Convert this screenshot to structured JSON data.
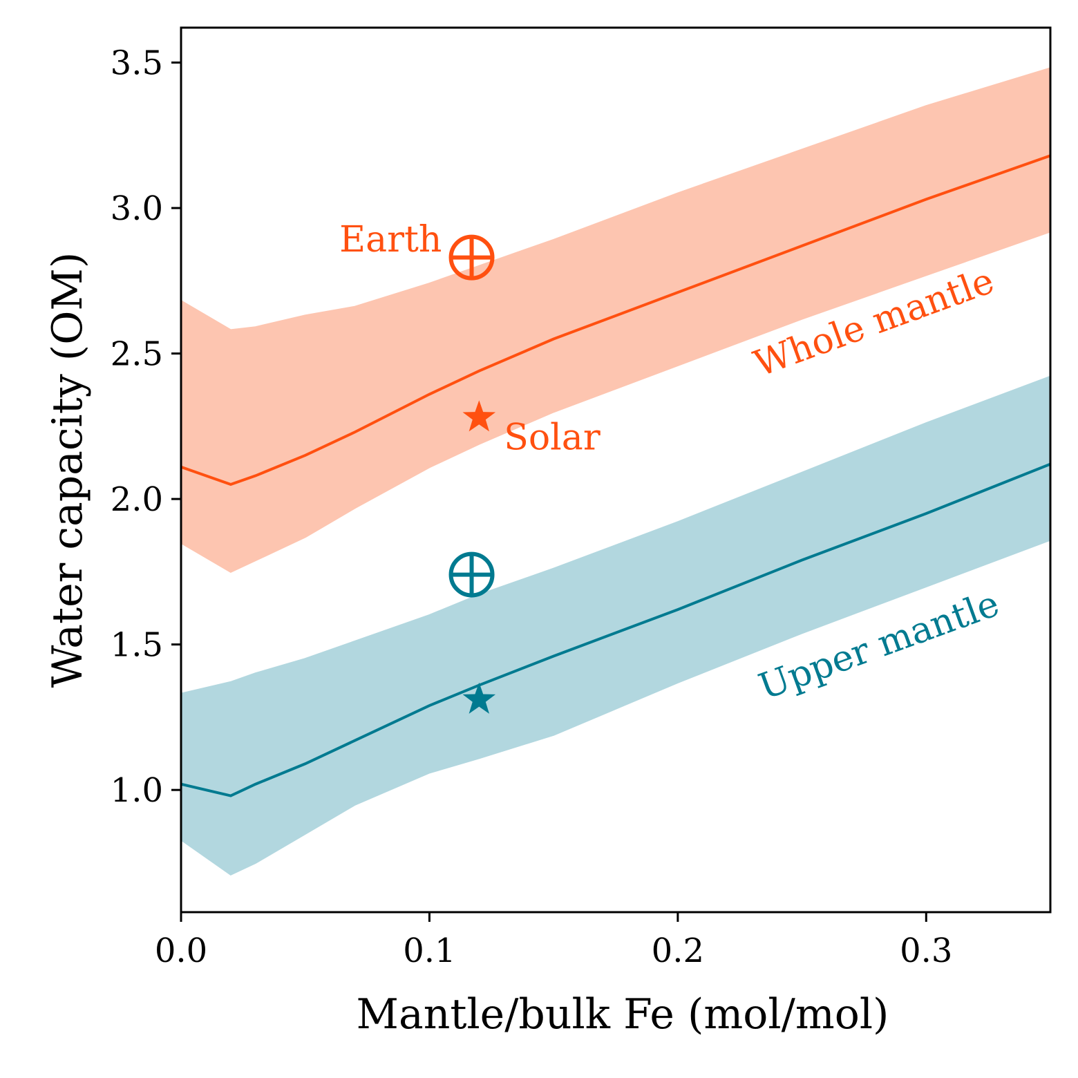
{
  "chart_data": {
    "type": "line",
    "xlabel": "Mantle/bulk Fe (mol/mol)",
    "ylabel": "Water capacity (OM)",
    "xlim": [
      0.0,
      0.35
    ],
    "ylim": [
      0.58,
      3.62
    ],
    "xticks": [
      0.0,
      0.1,
      0.2,
      0.3
    ],
    "xtick_labels": [
      "0.0",
      "0.1",
      "0.2",
      "0.3"
    ],
    "yticks": [
      1.0,
      1.5,
      2.0,
      2.5,
      3.0,
      3.5
    ],
    "ytick_labels": [
      "1.0",
      "1.5",
      "2.0",
      "2.5",
      "3.0",
      "3.5"
    ],
    "grid": false,
    "series": [
      {
        "name": "Whole mantle",
        "color": "#ff5010",
        "band_color": "#fdc5b0",
        "x": [
          0.0,
          0.02,
          0.03,
          0.05,
          0.07,
          0.1,
          0.12,
          0.15,
          0.2,
          0.25,
          0.3,
          0.35
        ],
        "y": [
          2.11,
          2.05,
          2.08,
          2.15,
          2.23,
          2.36,
          2.44,
          2.55,
          2.71,
          2.87,
          3.03,
          3.18
        ],
        "lower": [
          1.85,
          1.75,
          1.79,
          1.87,
          1.97,
          2.11,
          2.19,
          2.3,
          2.46,
          2.62,
          2.77,
          2.92
        ],
        "upper": [
          2.68,
          2.58,
          2.59,
          2.63,
          2.66,
          2.74,
          2.8,
          2.89,
          3.05,
          3.2,
          3.35,
          3.48
        ]
      },
      {
        "name": "Upper mantle",
        "color": "#007a90",
        "band_color": "#b2d7df",
        "x": [
          0.0,
          0.02,
          0.03,
          0.05,
          0.07,
          0.1,
          0.12,
          0.15,
          0.2,
          0.25,
          0.3,
          0.35
        ],
        "y": [
          1.02,
          0.98,
          1.02,
          1.09,
          1.17,
          1.29,
          1.36,
          1.46,
          1.62,
          1.79,
          1.95,
          2.12
        ],
        "lower": [
          0.83,
          0.71,
          0.75,
          0.85,
          0.95,
          1.06,
          1.11,
          1.19,
          1.37,
          1.54,
          1.7,
          1.86
        ],
        "upper": [
          1.33,
          1.37,
          1.4,
          1.45,
          1.51,
          1.6,
          1.67,
          1.76,
          1.92,
          2.09,
          2.26,
          2.42
        ]
      }
    ],
    "markers": [
      {
        "name": "Earth",
        "symbol": "earth-symbol",
        "series": "Whole mantle",
        "x": 0.117,
        "y": 2.83,
        "color": "#ff5010"
      },
      {
        "name": "Solar",
        "symbol": "star",
        "series": "Whole mantle",
        "x": 0.12,
        "y": 2.28,
        "color": "#ff5010"
      },
      {
        "symbol": "earth-symbol",
        "series": "Upper mantle",
        "x": 0.117,
        "y": 1.74,
        "color": "#007a90"
      },
      {
        "symbol": "star",
        "series": "Upper mantle",
        "x": 0.12,
        "y": 1.31,
        "color": "#007a90"
      }
    ],
    "annotations": [
      {
        "text": "Earth",
        "x": 0.105,
        "y": 2.85,
        "color": "#ff5010"
      },
      {
        "text": "Solar",
        "x": 0.13,
        "y": 2.17,
        "color": "#ff5010"
      },
      {
        "text": "Whole mantle",
        "x": 0.233,
        "y": 2.42,
        "color": "#ff5010"
      },
      {
        "text": "Upper mantle",
        "x": 0.235,
        "y": 1.31,
        "color": "#007a90"
      }
    ]
  }
}
